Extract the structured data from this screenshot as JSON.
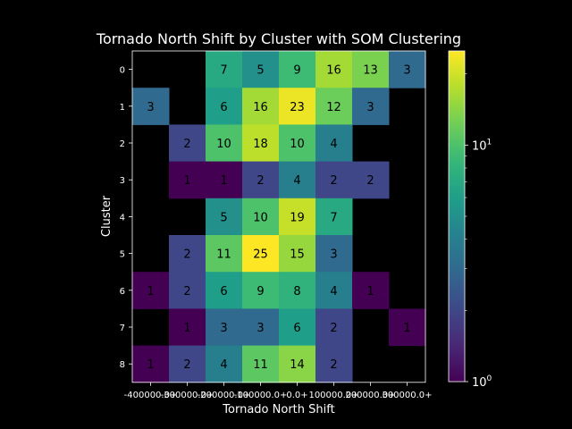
{
  "chart_data": {
    "type": "heatmap",
    "title": "Tornado North Shift by Cluster with SOM Clustering",
    "xlabel": "Tornado North Shift",
    "ylabel": "Cluster",
    "x_tick_labels": [
      "-400000.0+",
      "-300000.0+",
      "-200000.0+",
      "-100000.0+",
      "0.0+",
      "100000.0+",
      "200000.0+",
      "300000.0+"
    ],
    "y_tick_labels": [
      "0",
      "1",
      "2",
      "3",
      "4",
      "5",
      "6",
      "7",
      "8"
    ],
    "values": [
      [
        null,
        null,
        7,
        5,
        9,
        16,
        13,
        3
      ],
      [
        3,
        null,
        6,
        16,
        23,
        12,
        3,
        null
      ],
      [
        null,
        2,
        10,
        18,
        10,
        4,
        null,
        null
      ],
      [
        null,
        1,
        1,
        2,
        4,
        2,
        2,
        null
      ],
      [
        null,
        null,
        5,
        10,
        19,
        7,
        null,
        null
      ],
      [
        null,
        2,
        11,
        25,
        15,
        3,
        null,
        null
      ],
      [
        1,
        2,
        6,
        9,
        8,
        4,
        1,
        null
      ],
      [
        null,
        1,
        3,
        3,
        6,
        2,
        null,
        1
      ],
      [
        1,
        2,
        4,
        11,
        14,
        2,
        null,
        null
      ]
    ],
    "colorbar": {
      "scale": "log",
      "colormap": "viridis",
      "min": 1,
      "max": 25,
      "tick_labels": [
        {
          "value": 1,
          "base": "10",
          "exp": "0"
        },
        {
          "value": 10,
          "base": "10",
          "exp": "1"
        }
      ]
    },
    "background_color": "#000000",
    "text_color": "#ffffff",
    "cell_text_color": "#000000"
  }
}
